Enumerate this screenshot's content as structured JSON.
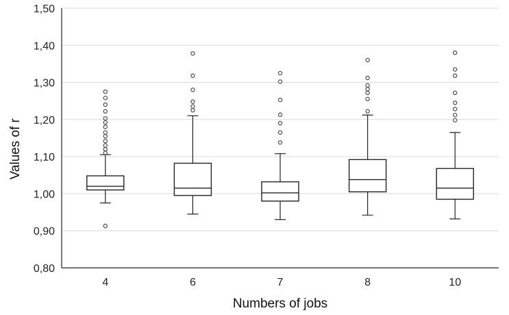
{
  "chart_data": {
    "type": "box",
    "xlabel": "Numbers of jobs",
    "ylabel": "Values of r",
    "ylim": [
      0.8,
      1.5
    ],
    "yticks": [
      0.8,
      0.9,
      1.0,
      1.1,
      1.2,
      1.3,
      1.4,
      1.5
    ],
    "ytick_labels": [
      "0,80",
      "0,90",
      "1,00",
      "1,10",
      "1,20",
      "1,30",
      "1,40",
      "1,50"
    ],
    "grid": true,
    "categories": [
      "4",
      "6",
      "7",
      "8",
      "10"
    ],
    "boxes": [
      {
        "category": "4",
        "whisker_low": 0.975,
        "q1": 1.01,
        "median": 1.02,
        "q3": 1.048,
        "whisker_high": 1.105,
        "outliers": [
          0.913,
          1.11,
          1.12,
          1.13,
          1.142,
          1.155,
          1.165,
          1.18,
          1.192,
          1.203,
          1.222,
          1.24,
          1.258,
          1.275
        ]
      },
      {
        "category": "6",
        "whisker_low": 0.945,
        "q1": 0.995,
        "median": 1.015,
        "q3": 1.082,
        "whisker_high": 1.21,
        "outliers": [
          1.225,
          1.235,
          1.248,
          1.28,
          1.318,
          1.378
        ]
      },
      {
        "category": "7",
        "whisker_low": 0.93,
        "q1": 0.98,
        "median": 1.002,
        "q3": 1.032,
        "whisker_high": 1.108,
        "outliers": [
          1.138,
          1.165,
          1.19,
          1.213,
          1.253,
          1.302,
          1.325
        ]
      },
      {
        "category": "8",
        "whisker_low": 0.942,
        "q1": 1.005,
        "median": 1.038,
        "q3": 1.092,
        "whisker_high": 1.212,
        "outliers": [
          1.222,
          1.255,
          1.272,
          1.282,
          1.292,
          1.312,
          1.36
        ]
      },
      {
        "category": "10",
        "whisker_low": 0.932,
        "q1": 0.985,
        "median": 1.015,
        "q3": 1.068,
        "whisker_high": 1.165,
        "outliers": [
          1.198,
          1.212,
          1.228,
          1.245,
          1.272,
          1.318,
          1.335,
          1.38
        ]
      }
    ]
  }
}
